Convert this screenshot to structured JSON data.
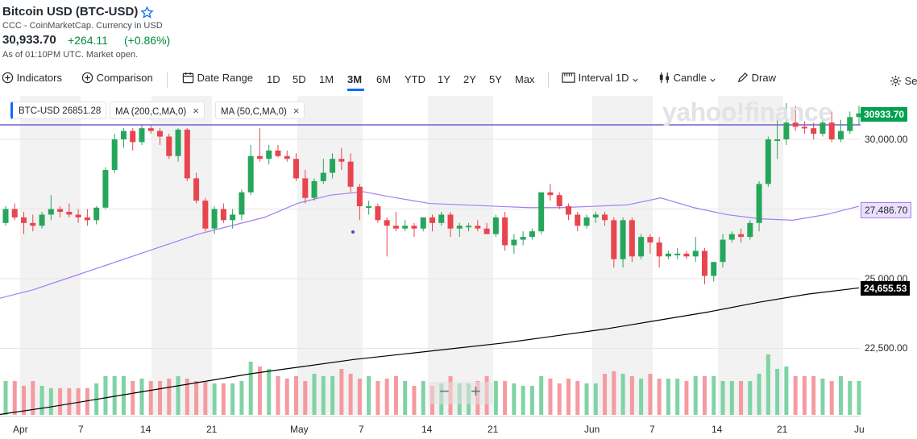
{
  "header": {
    "title": "Bitcoin USD (BTC-USD)",
    "subtitle": "CCC - CoinMarketCap. Currency in USD",
    "price": "30,933.70",
    "change": "+264.11",
    "change_pct": "(+0.86%)",
    "as_of": "As of 01:10PM UTC. Market open."
  },
  "toolbar": {
    "indicators": "Indicators",
    "comparison": "Comparison",
    "date_range": "Date Range",
    "ranges": [
      "1D",
      "5D",
      "1M",
      "3M",
      "6M",
      "YTD",
      "1Y",
      "2Y",
      "5Y",
      "Max"
    ],
    "selected_range": "3M",
    "interval_label": "Interval",
    "interval_value": "1D",
    "chart_type": "Candle",
    "draw": "Draw",
    "settings": "Se"
  },
  "legend": {
    "btc": "BTC-USD 26851.28",
    "ma200": "MA (200,C,MA,0)",
    "ma50": "MA (50,C,MA,0)",
    "close": "×"
  },
  "watermark": "yahoo!finance",
  "zoom": {
    "minus": "−",
    "plus": "+"
  },
  "colors": {
    "up": "#26a65b",
    "down": "#e8454f",
    "ma50": "#a67cf1",
    "ma200": "#000000",
    "accent": "#0f69ff"
  },
  "chart_data": {
    "type": "candlestick",
    "title": "Bitcoin USD (BTC-USD)",
    "ylim": [
      20000,
      31500
    ],
    "y_ticks": [
      "30,000.00",
      "25,000.00",
      "22,500.00"
    ],
    "x_labels": [
      "Apr",
      "7",
      "14",
      "21",
      "May",
      "7",
      "14",
      "21",
      "Jun",
      "7",
      "14",
      "21",
      "Ju"
    ],
    "price_tag": "30933.70",
    "ma50_tag": "27,486.70",
    "ma200_tag": "24,655.53",
    "candles": [
      [
        27000,
        27600,
        26900,
        27500
      ],
      [
        27500,
        27700,
        27100,
        27200
      ],
      [
        27200,
        27400,
        26600,
        27000
      ],
      [
        27000,
        27300,
        26700,
        26900
      ],
      [
        26900,
        27400,
        26800,
        27300
      ],
      [
        27300,
        28000,
        27100,
        27500
      ],
      [
        27500,
        27600,
        27200,
        27400
      ],
      [
        27400,
        27700,
        27200,
        27300
      ],
      [
        27300,
        27500,
        27000,
        27200
      ],
      [
        27200,
        27500,
        26900,
        27100
      ],
      [
        27100,
        27600,
        26950,
        27550
      ],
      [
        27550,
        29000,
        27500,
        28900
      ],
      [
        28900,
        30200,
        28800,
        30000
      ],
      [
        30000,
        30400,
        29700,
        30300
      ],
      [
        30300,
        30400,
        29600,
        29900
      ],
      [
        29900,
        30500,
        29800,
        30400
      ],
      [
        30400,
        30500,
        30200,
        30300
      ],
      [
        30300,
        30400,
        29800,
        30100
      ],
      [
        30100,
        30200,
        29300,
        29400
      ],
      [
        29400,
        30400,
        29200,
        30350
      ],
      [
        30350,
        30400,
        28500,
        28600
      ],
      [
        28600,
        28800,
        27700,
        27800
      ],
      [
        27800,
        27900,
        26700,
        26800
      ],
      [
        26800,
        27600,
        26600,
        27500
      ],
      [
        27500,
        27700,
        27000,
        27100
      ],
      [
        27100,
        27500,
        26800,
        27300
      ],
      [
        27300,
        28200,
        27100,
        28100
      ],
      [
        28100,
        29800,
        28000,
        29400
      ],
      [
        29400,
        30400,
        29200,
        29300
      ],
      [
        29300,
        29800,
        29100,
        29600
      ],
      [
        29600,
        29800,
        29350,
        29400
      ],
      [
        29400,
        29600,
        29200,
        29300
      ],
      [
        29300,
        29500,
        28500,
        28600
      ],
      [
        28600,
        28900,
        27700,
        27900
      ],
      [
        27900,
        28600,
        27800,
        28500
      ],
      [
        28500,
        29300,
        28400,
        28800
      ],
      [
        28800,
        29500,
        28600,
        29300
      ],
      [
        29300,
        29700,
        28900,
        29200
      ],
      [
        29200,
        29500,
        28100,
        28300
      ],
      [
        28300,
        28400,
        27100,
        27600
      ],
      [
        27600,
        27800,
        27300,
        27600
      ],
      [
        27600,
        27700,
        27000,
        27100
      ],
      [
        27100,
        27200,
        25800,
        26900
      ],
      [
        26900,
        27400,
        26700,
        26800
      ],
      [
        26800,
        27100,
        26700,
        26900
      ],
      [
        26900,
        27000,
        26500,
        26800
      ],
      [
        26800,
        27200,
        26700,
        27200
      ],
      [
        27200,
        27300,
        26700,
        27000
      ],
      [
        27000,
        27400,
        26900,
        27300
      ],
      [
        27300,
        27400,
        26500,
        26800
      ],
      [
        26800,
        27000,
        26500,
        26900
      ],
      [
        26900,
        27000,
        26700,
        26900
      ],
      [
        26900,
        27100,
        26700,
        26800
      ],
      [
        26800,
        27000,
        26600,
        26600
      ],
      [
        26600,
        27300,
        26500,
        27200
      ],
      [
        27200,
        27400,
        26000,
        26200
      ],
      [
        26200,
        26600,
        25900,
        26400
      ],
      [
        26400,
        26700,
        26200,
        26500
      ],
      [
        26500,
        26800,
        26400,
        26700
      ],
      [
        26700,
        28100,
        26600,
        28100
      ],
      [
        28100,
        28400,
        27800,
        28000
      ],
      [
        28000,
        28100,
        27500,
        27600
      ],
      [
        27600,
        27700,
        27100,
        27300
      ],
      [
        27300,
        27400,
        26700,
        26900
      ],
      [
        26900,
        27300,
        26800,
        27200
      ],
      [
        27200,
        27400,
        27000,
        27300
      ],
      [
        27300,
        27400,
        26900,
        27100
      ],
      [
        27100,
        27200,
        25400,
        25700
      ],
      [
        25700,
        27200,
        25400,
        27100
      ],
      [
        27100,
        27200,
        25600,
        25800
      ],
      [
        25800,
        26600,
        25700,
        26500
      ],
      [
        26500,
        26600,
        25900,
        26300
      ],
      [
        26300,
        26500,
        25400,
        25800
      ],
      [
        25800,
        26000,
        25700,
        25900
      ],
      [
        25900,
        26100,
        25700,
        25900
      ],
      [
        25900,
        26000,
        25700,
        25800
      ],
      [
        25800,
        26500,
        25600,
        26000
      ],
      [
        26000,
        26100,
        24800,
        25100
      ],
      [
        25100,
        25600,
        24900,
        25600
      ],
      [
        25600,
        26600,
        25400,
        26400
      ],
      [
        26400,
        26700,
        26300,
        26600
      ],
      [
        26600,
        26800,
        26300,
        26500
      ],
      [
        26500,
        27100,
        26400,
        27000
      ],
      [
        27000,
        28500,
        26700,
        28400
      ],
      [
        28400,
        30100,
        28300,
        30000
      ],
      [
        30000,
        30900,
        29300,
        30000
      ],
      [
        30000,
        31300,
        29800,
        30600
      ],
      [
        30600,
        31200,
        30300,
        30450
      ],
      [
        30450,
        30650,
        30200,
        30400
      ],
      [
        30400,
        30600,
        30000,
        30200
      ],
      [
        30200,
        30800,
        30100,
        30600
      ],
      [
        30600,
        31000,
        29900,
        30000
      ],
      [
        30000,
        30700,
        29900,
        30300
      ],
      [
        30300,
        31000,
        30200,
        30800
      ],
      [
        30800,
        31200,
        30500,
        30933.7
      ]
    ],
    "volume": [
      14,
      14,
      12,
      14,
      12,
      11,
      11,
      11,
      11,
      11,
      13,
      16,
      16,
      16,
      14,
      15,
      14,
      14,
      15,
      16,
      15,
      14,
      14,
      13,
      13,
      13,
      14,
      22,
      20,
      19,
      16,
      15,
      16,
      14,
      17,
      16,
      16,
      19,
      17,
      15,
      16,
      14,
      15,
      16,
      14,
      12,
      14,
      12,
      13,
      16,
      13,
      13,
      14,
      16,
      14,
      14,
      13,
      12,
      12,
      16,
      15,
      13,
      15,
      14,
      13,
      13,
      17,
      18,
      17,
      16,
      15,
      17,
      15,
      15,
      15,
      14,
      16,
      16,
      16,
      14,
      14,
      14,
      14,
      17,
      25,
      19,
      20,
      16,
      16,
      16,
      15,
      14,
      16,
      14,
      14
    ],
    "ma50": [
      24300,
      24600,
      25000,
      25400,
      25800,
      26200,
      26600,
      26900,
      27200,
      27700,
      28000,
      28120,
      27900,
      27700,
      27650,
      27600,
      27550,
      27550,
      27600,
      27650,
      27900,
      27550,
      27300,
      27150,
      27100,
      27300,
      27600
    ],
    "ma200": [
      20130,
      20400,
      20700,
      21000,
      21300,
      21600,
      21850,
      22100,
      22300,
      22500,
      22700,
      22950,
      23200,
      23500,
      23800,
      24150,
      24450,
      24670
    ]
  }
}
